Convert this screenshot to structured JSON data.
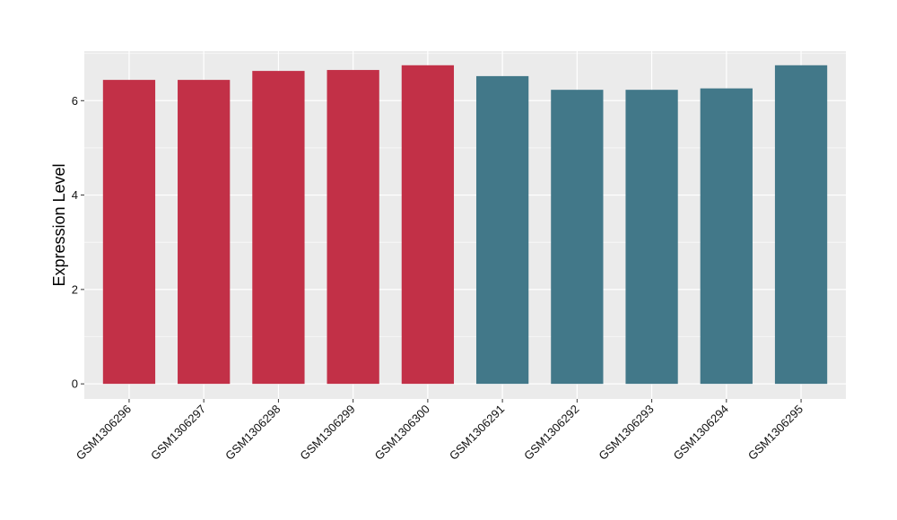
{
  "chart_data": {
    "type": "bar",
    "ylabel": "Expression Level",
    "xlabel": "",
    "title": "",
    "categories": [
      "GSM1306296",
      "GSM1306297",
      "GSM1306298",
      "GSM1306299",
      "GSM1306300",
      "GSM1306291",
      "GSM1306292",
      "GSM1306293",
      "GSM1306294",
      "GSM1306295"
    ],
    "values": [
      6.44,
      6.44,
      6.63,
      6.65,
      6.75,
      6.52,
      6.23,
      6.23,
      6.26,
      6.75
    ],
    "bar_colors": [
      "#c23047",
      "#c23047",
      "#c23047",
      "#c23047",
      "#c23047",
      "#427889",
      "#427889",
      "#427889",
      "#427889",
      "#427889"
    ],
    "ylim": [
      -0.32,
      7.05
    ],
    "yticks": [
      0,
      2,
      4,
      6
    ],
    "grid": true,
    "legend": "none",
    "panel_background": "#ebebeb",
    "grid_color": "#ffffff"
  }
}
